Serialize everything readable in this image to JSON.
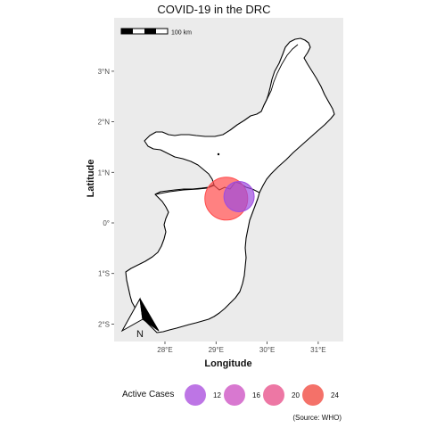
{
  "map": {
    "title": "COVID-19 in the DRC",
    "xlabel": "Longitude",
    "ylabel": "Latitude",
    "x_ticks": [
      {
        "value": 28,
        "label": "28°E"
      },
      {
        "value": 29,
        "label": "29°E"
      },
      {
        "value": 30,
        "label": "30°E"
      },
      {
        "value": 31,
        "label": "31°E"
      }
    ],
    "y_ticks": [
      {
        "value": 3,
        "label": "3°N"
      },
      {
        "value": 2,
        "label": "2°N"
      },
      {
        "value": 1,
        "label": "1°N"
      },
      {
        "value": 0,
        "label": "0°"
      },
      {
        "value": -1,
        "label": "1°S"
      },
      {
        "value": -2,
        "label": "2°S"
      }
    ],
    "scale_bar_label": "100 km",
    "north_arrow_label": "N",
    "panel_background": "#ebebeb",
    "land_fill": "#ffffff",
    "border_color": "#000000"
  },
  "chart_data": {
    "type": "scatter",
    "title": "COVID-19 in the DRC",
    "xlabel": "Longitude",
    "ylabel": "Latitude",
    "xlim": [
      27.0,
      31.5
    ],
    "ylim": [
      -2.3,
      4.0
    ],
    "grid": false,
    "legend_position": "bottom",
    "points": [
      {
        "lon": 29.2,
        "lat": 0.48,
        "active_cases": 24,
        "color": "#ff4c4c"
      },
      {
        "lon": 29.45,
        "lat": 0.52,
        "active_cases": 12,
        "color": "#9d4ce0"
      }
    ]
  },
  "legend": {
    "title": "Active Cases",
    "items": [
      {
        "label": "12",
        "color": "#b15de0"
      },
      {
        "label": "16",
        "color": "#d160c8"
      },
      {
        "label": "20",
        "color": "#ea5f94"
      },
      {
        "label": "24",
        "color": "#f2584f"
      }
    ]
  },
  "source_note": "(Source: WHO)"
}
